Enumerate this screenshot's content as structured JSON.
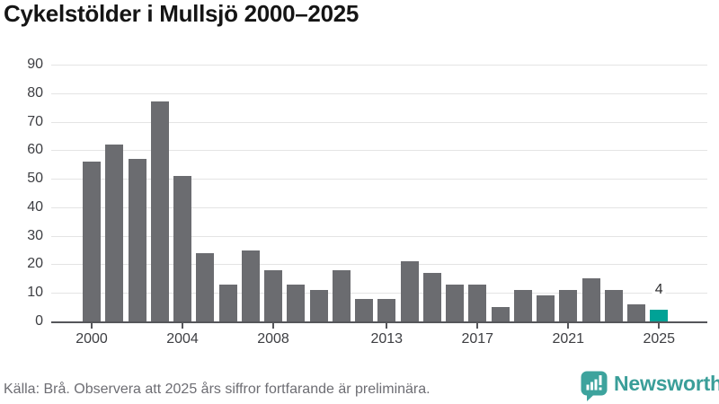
{
  "chart_data": {
    "type": "bar",
    "title": "Cykelstölder i Mullsjö 2000–2025",
    "categories": [
      2000,
      2001,
      2002,
      2003,
      2004,
      2005,
      2006,
      2007,
      2008,
      2009,
      2010,
      2011,
      2012,
      2013,
      2014,
      2015,
      2016,
      2017,
      2018,
      2019,
      2020,
      2021,
      2022,
      2023,
      2024,
      2025
    ],
    "values": [
      56,
      62,
      57,
      77,
      51,
      24,
      13,
      25,
      18,
      13,
      11,
      18,
      8,
      8,
      21,
      17,
      13,
      13,
      5,
      11,
      9,
      11,
      15,
      11,
      6,
      4
    ],
    "x_tick_labels": [
      "2000",
      "2004",
      "2008",
      "2013",
      "2017",
      "2021",
      "2025"
    ],
    "y_ticks": [
      0,
      10,
      20,
      30,
      40,
      50,
      60,
      70,
      80,
      90
    ],
    "ylim": [
      0,
      90
    ],
    "grid": "horizontal",
    "legend": "none",
    "highlight_category": 2025,
    "highlight_value_label": "4",
    "bar_color": "#6b6c70",
    "highlight_color": "#00a296"
  },
  "colors": {
    "background": "#ffffff",
    "title_text": "#151515",
    "axis_label_text": "#3d3e42",
    "gridline": "#e4e4e4",
    "axis_line": "#55565a",
    "footer_text": "#6d6d73",
    "logo_teal": "#3a9e99",
    "logo_icon_teal": "#3da39d"
  },
  "footer": {
    "source_note": "Källa: Brå. Observera att 2025 års siffror fortfarande är preliminära.",
    "logo_text": "Newsworthy",
    "logo_icon": "bar-chart-speech-bubble-icon"
  }
}
